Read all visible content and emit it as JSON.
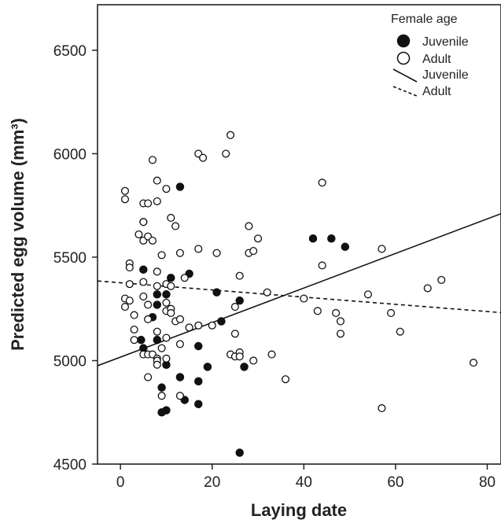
{
  "chart_data": {
    "type": "scatter",
    "xlabel": "Laying date",
    "ylabel": "Predicted egg volume (mm³)",
    "xlim": [
      -5,
      83
    ],
    "ylim": [
      4500,
      6720
    ],
    "x_ticks": [
      0,
      20,
      40,
      60,
      80
    ],
    "y_ticks": [
      4500,
      5000,
      5500,
      6000,
      6500
    ],
    "x_tick_labels": [
      "0",
      "20",
      "40",
      "60",
      "80"
    ],
    "y_tick_labels": [
      "4500",
      "5000",
      "5500",
      "6000",
      "6500"
    ],
    "grid": false,
    "legend_position": "top-right",
    "legend": {
      "title": "Female age",
      "entries": [
        "Juvenile",
        "Adult",
        "Juvenile",
        "Adult"
      ]
    },
    "series": [
      {
        "name": "Juvenile",
        "marker": "filled-circle",
        "color": "#111111",
        "points": [
          [
            4.5,
            5100
          ],
          [
            5,
            5060
          ],
          [
            5,
            5440
          ],
          [
            7,
            5210
          ],
          [
            8,
            5270
          ],
          [
            8,
            5320
          ],
          [
            8,
            5100
          ],
          [
            9,
            4870
          ],
          [
            9,
            4750
          ],
          [
            10,
            4760
          ],
          [
            10,
            4980
          ],
          [
            10,
            5320
          ],
          [
            11,
            5400
          ],
          [
            13,
            5840
          ],
          [
            13,
            4920
          ],
          [
            14,
            4810
          ],
          [
            15,
            5420
          ],
          [
            17,
            5070
          ],
          [
            17,
            4900
          ],
          [
            17,
            4790
          ],
          [
            19,
            4970
          ],
          [
            21,
            5330
          ],
          [
            22,
            5190
          ],
          [
            26,
            5290
          ],
          [
            27,
            4970
          ],
          [
            26,
            4555
          ],
          [
            42,
            5590
          ],
          [
            46,
            5590
          ],
          [
            49,
            5550
          ]
        ]
      },
      {
        "name": "Adult",
        "marker": "open-circle",
        "color": "#111111",
        "points": [
          [
            1,
            5820
          ],
          [
            1,
            5780
          ],
          [
            1,
            5300
          ],
          [
            1,
            5260
          ],
          [
            2,
            5470
          ],
          [
            2,
            5450
          ],
          [
            2,
            5370
          ],
          [
            2,
            5290
          ],
          [
            3,
            5220
          ],
          [
            3,
            5150
          ],
          [
            3,
            5100
          ],
          [
            4,
            5610
          ],
          [
            5,
            5760
          ],
          [
            5,
            5670
          ],
          [
            5,
            5670
          ],
          [
            5,
            5580
          ],
          [
            5,
            5380
          ],
          [
            5,
            5310
          ],
          [
            5,
            5030
          ],
          [
            6,
            5760
          ],
          [
            6,
            5600
          ],
          [
            6,
            5200
          ],
          [
            6,
            5030
          ],
          [
            6,
            4920
          ],
          [
            6,
            5270
          ],
          [
            7,
            5970
          ],
          [
            7,
            5580
          ],
          [
            7,
            5030
          ],
          [
            8,
            5870
          ],
          [
            8,
            5770
          ],
          [
            8,
            5430
          ],
          [
            8,
            5360
          ],
          [
            8,
            5010
          ],
          [
            8,
            5000
          ],
          [
            8,
            4980
          ],
          [
            8,
            5140
          ],
          [
            9,
            5510
          ],
          [
            9,
            5060
          ],
          [
            9,
            4830
          ],
          [
            10,
            5830
          ],
          [
            10,
            5370
          ],
          [
            10,
            5280
          ],
          [
            10,
            5240
          ],
          [
            10,
            5110
          ],
          [
            10,
            5010
          ],
          [
            11,
            5690
          ],
          [
            11,
            5360
          ],
          [
            11,
            5250
          ],
          [
            11,
            5230
          ],
          [
            12,
            5650
          ],
          [
            12,
            5190
          ],
          [
            13,
            5520
          ],
          [
            13,
            5200
          ],
          [
            13,
            5080
          ],
          [
            13,
            4830
          ],
          [
            14,
            5400
          ],
          [
            15,
            5160
          ],
          [
            17,
            6000
          ],
          [
            17,
            5540
          ],
          [
            17,
            5170
          ],
          [
            18,
            5980
          ],
          [
            20,
            5170
          ],
          [
            21,
            5520
          ],
          [
            23,
            6000
          ],
          [
            24,
            6090
          ],
          [
            24,
            5030
          ],
          [
            25,
            5020
          ],
          [
            25,
            5130
          ],
          [
            25,
            5260
          ],
          [
            26,
            5410
          ],
          [
            26,
            5040
          ],
          [
            26,
            5020
          ],
          [
            28,
            5650
          ],
          [
            28,
            5520
          ],
          [
            29,
            5530
          ],
          [
            29,
            5000
          ],
          [
            30,
            5590
          ],
          [
            32,
            5330
          ],
          [
            33,
            5030
          ],
          [
            36,
            4910
          ],
          [
            40,
            5300
          ],
          [
            43,
            5240
          ],
          [
            44,
            5860
          ],
          [
            44,
            5460
          ],
          [
            47,
            5230
          ],
          [
            48,
            5190
          ],
          [
            48,
            5130
          ],
          [
            54,
            5320
          ],
          [
            57,
            5540
          ],
          [
            57,
            4770
          ],
          [
            59,
            5230
          ],
          [
            61,
            5140
          ],
          [
            67,
            5350
          ],
          [
            70,
            5390
          ],
          [
            77,
            4990
          ]
        ]
      }
    ],
    "fit_lines": [
      {
        "name": "Juvenile",
        "style": "solid",
        "x": [
          -5,
          83
        ],
        "y": [
          4975,
          5710
        ]
      },
      {
        "name": "Adult",
        "style": "dashed",
        "x": [
          -5,
          83
        ],
        "y": [
          5385,
          5232
        ]
      }
    ]
  }
}
